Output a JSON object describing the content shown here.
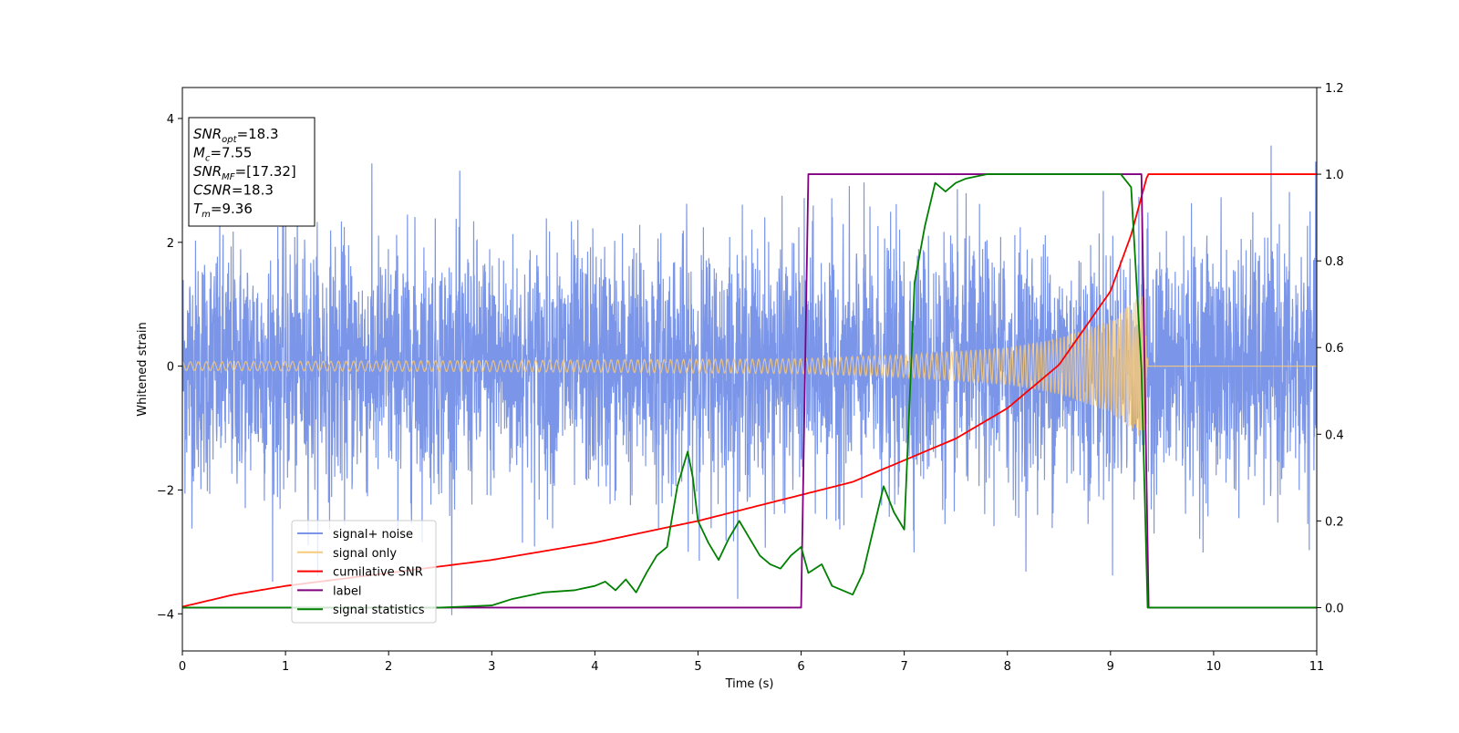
{
  "chart_data": {
    "type": "line",
    "xlabel": "Time (s)",
    "ylabel": "Whitened strain",
    "xlim": [
      0,
      11
    ],
    "ylim": [
      -4.6,
      4.5
    ],
    "y2lim": [
      -0.1,
      1.2
    ],
    "x_ticks": [
      0,
      1,
      2,
      3,
      4,
      5,
      6,
      7,
      8,
      9,
      10,
      11
    ],
    "y_ticks": [
      -4,
      -2,
      0,
      2,
      4
    ],
    "y2_ticks": [
      "0.0",
      "0.2",
      "0.4",
      "0.6",
      "0.8",
      "1.0",
      "1.2"
    ],
    "grid": false,
    "annotation": {
      "lines": [
        {
          "base": "SNR",
          "sub": "opt",
          "value": "=18.3"
        },
        {
          "base": "M",
          "sub": "c",
          "value": "=7.55"
        },
        {
          "base": "SNR",
          "sub": "MF",
          "value": "=[17.32]"
        },
        {
          "base": "CSNR",
          "sub": "",
          "value": "=18.3"
        },
        {
          "base": "T",
          "sub": "m",
          "value": "=9.36"
        }
      ]
    },
    "legend": {
      "position": "lower-left",
      "entries": [
        {
          "label": "signal+ noise",
          "color": "#7b96e8"
        },
        {
          "label": "signal only",
          "color": "#f7c97a"
        },
        {
          "label": "cumilative SNR",
          "color": "#ff0000"
        },
        {
          "label": "label",
          "color": "#800080"
        },
        {
          "label": "signal statistics",
          "color": "#008000"
        }
      ]
    },
    "series": [
      {
        "name": "signal+ noise",
        "axis": "left",
        "color": "#7b96e8",
        "noise_sigma": 1.0,
        "range": [
          -4.15,
          4.1
        ]
      },
      {
        "name": "signal only",
        "axis": "left",
        "color": "#f7c97a",
        "merger_time": 9.36,
        "envelope": {
          "x": [
            0,
            3,
            6,
            7,
            8,
            8.5,
            9.0,
            9.2,
            9.34,
            9.36
          ],
          "y": [
            0.07,
            0.09,
            0.12,
            0.18,
            0.3,
            0.45,
            0.75,
            1.0,
            1.25,
            0.0
          ]
        }
      },
      {
        "name": "cumilative SNR",
        "axis": "right",
        "x": [
          0,
          0.5,
          1,
          2,
          3,
          4,
          5,
          6,
          6.5,
          7,
          7.5,
          8,
          8.5,
          9,
          9.2,
          9.36,
          11
        ],
        "y": [
          0.002,
          0.03,
          0.05,
          0.08,
          0.11,
          0.15,
          0.2,
          0.26,
          0.29,
          0.34,
          0.39,
          0.46,
          0.56,
          0.73,
          0.86,
          1.0,
          1.0
        ]
      },
      {
        "name": "label",
        "axis": "right",
        "x": [
          0,
          6.0,
          6.07,
          9.3,
          9.37,
          11
        ],
        "y": [
          0,
          0,
          1,
          1,
          0,
          0
        ]
      },
      {
        "name": "signal statistics",
        "axis": "right",
        "x": [
          0,
          2.5,
          3.0,
          3.2,
          3.5,
          3.8,
          4.0,
          4.1,
          4.2,
          4.3,
          4.4,
          4.5,
          4.6,
          4.7,
          4.8,
          4.85,
          4.9,
          4.95,
          5.0,
          5.1,
          5.2,
          5.3,
          5.4,
          5.5,
          5.6,
          5.7,
          5.8,
          5.9,
          6.0,
          6.07,
          6.2,
          6.3,
          6.4,
          6.5,
          6.6,
          6.7,
          6.8,
          6.9,
          7.0,
          7.1,
          7.2,
          7.3,
          7.4,
          7.5,
          7.6,
          7.8,
          8.0,
          8.5,
          9.0,
          9.1,
          9.2,
          9.3,
          9.36,
          11
        ],
        "y": [
          0,
          0,
          0.005,
          0.02,
          0.035,
          0.04,
          0.05,
          0.06,
          0.04,
          0.065,
          0.035,
          0.08,
          0.12,
          0.14,
          0.28,
          0.32,
          0.36,
          0.3,
          0.2,
          0.15,
          0.11,
          0.16,
          0.2,
          0.16,
          0.12,
          0.1,
          0.09,
          0.12,
          0.14,
          0.08,
          0.1,
          0.05,
          0.04,
          0.03,
          0.08,
          0.18,
          0.28,
          0.22,
          0.18,
          0.75,
          0.88,
          0.98,
          0.96,
          0.98,
          0.99,
          1.0,
          1.0,
          1.0,
          1.0,
          1.0,
          0.97,
          0.55,
          0.0,
          0.0
        ]
      }
    ]
  }
}
